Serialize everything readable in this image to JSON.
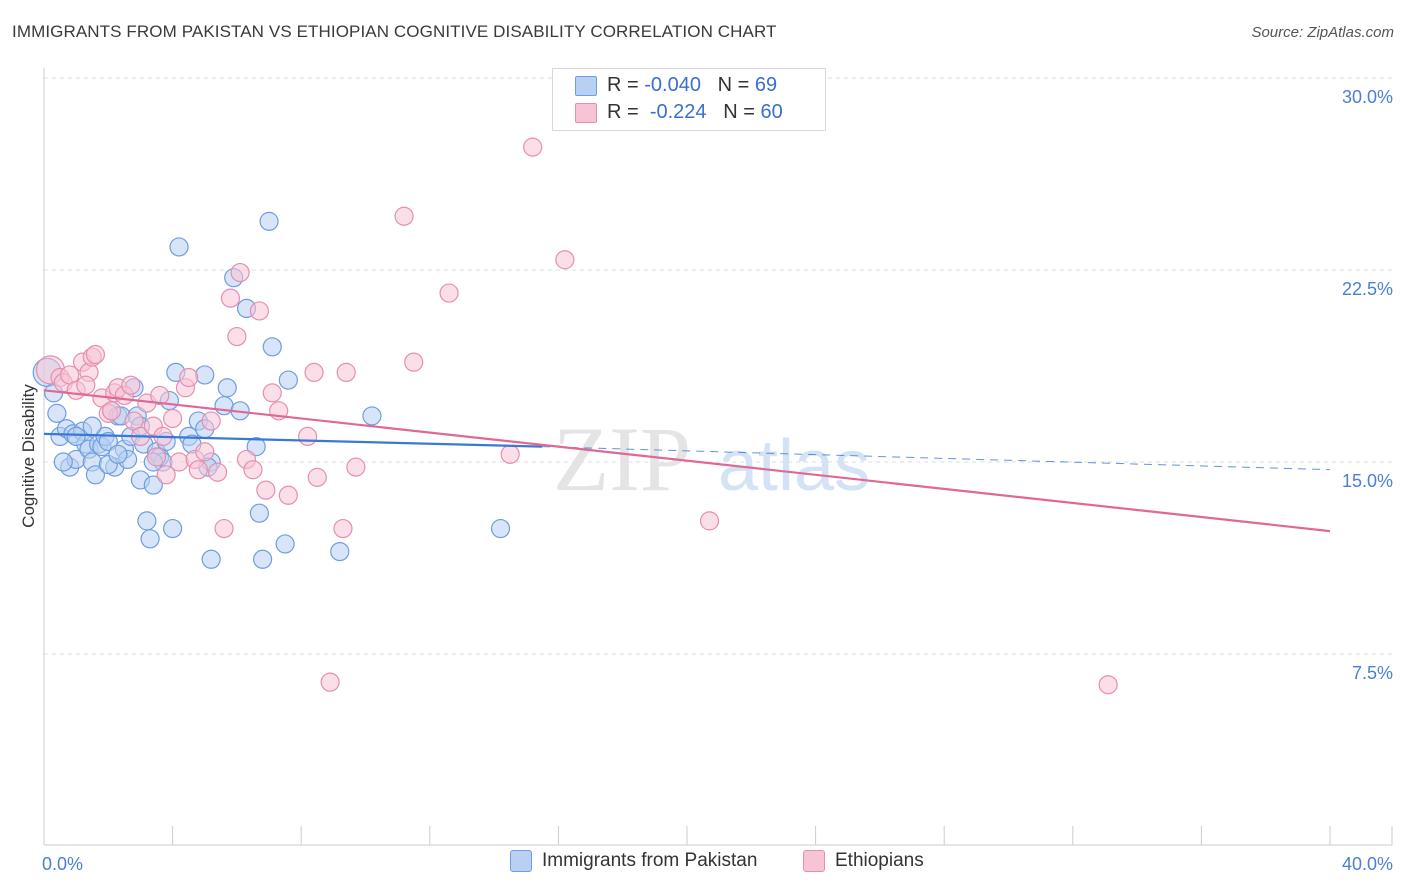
{
  "title": "IMMIGRANTS FROM PAKISTAN VS ETHIOPIAN COGNITIVE DISABILITY CORRELATION CHART",
  "source": "Source: ZipAtlas.com",
  "watermark": {
    "zip": "ZIP",
    "atlas": "atlas"
  },
  "legend": {
    "rows": [
      {
        "r_label": "R = ",
        "r_value": "-0.040",
        "n_label": "N = ",
        "n_value": "69"
      },
      {
        "r_label": "R = ",
        "r_value": "-0.224",
        "n_label": "N = ",
        "n_value": "60"
      }
    ]
  },
  "bottom_legend": [
    "Immigrants from Pakistan",
    "Ethiopians"
  ],
  "colors": {
    "blue_fill": "#b8d0f2",
    "blue_stroke": "#6f9de0",
    "blue_line": "#3a78d4",
    "pink_fill": "#f7c4d6",
    "pink_stroke": "#e58fb0",
    "pink_line": "#e06894",
    "tick_label": "#4a7fd4",
    "grid": "#dddddd"
  },
  "chart_data": {
    "type": "scatter",
    "title": "IMMIGRANTS FROM PAKISTAN VS ETHIOPIAN COGNITIVE DISABILITY CORRELATION CHART",
    "xlabel": "",
    "ylabel": "Cognitive Disability",
    "xlim": [
      0,
      40
    ],
    "ylim": [
      0,
      31
    ],
    "x_tick_labels": [
      "0.0%",
      "40.0%"
    ],
    "y_ticks": [
      7.5,
      15.0,
      22.5,
      30.0
    ],
    "y_tick_labels": [
      "7.5%",
      "15.0%",
      "22.5%",
      "30.0%"
    ],
    "grid": "horizontal dashed",
    "legend_position": "top-center",
    "series": [
      {
        "name": "Immigrants from Pakistan",
        "r": -0.04,
        "n": 69,
        "trend": {
          "x": [
            0,
            15.5
          ],
          "y": [
            16.1,
            15.6
          ],
          "dashed_to": [
            40,
            14.7
          ]
        },
        "points": [
          [
            0.1,
            18.5
          ],
          [
            0.3,
            17.7
          ],
          [
            0.4,
            16.9
          ],
          [
            0.5,
            16.0
          ],
          [
            0.7,
            16.3
          ],
          [
            0.8,
            14.8
          ],
          [
            0.9,
            16.1
          ],
          [
            1.0,
            15.1
          ],
          [
            1.2,
            16.2
          ],
          [
            1.3,
            15.7
          ],
          [
            1.4,
            15.5
          ],
          [
            1.5,
            15.0
          ],
          [
            1.6,
            14.5
          ],
          [
            1.7,
            15.7
          ],
          [
            1.8,
            15.6
          ],
          [
            1.9,
            16.0
          ],
          [
            2.0,
            15.8
          ],
          [
            2.1,
            17.0
          ],
          [
            2.2,
            14.8
          ],
          [
            2.3,
            16.8
          ],
          [
            2.4,
            16.8
          ],
          [
            2.5,
            15.5
          ],
          [
            2.6,
            15.1
          ],
          [
            2.7,
            16.0
          ],
          [
            2.8,
            17.9
          ],
          [
            2.9,
            16.8
          ],
          [
            3.0,
            14.3
          ],
          [
            3.1,
            15.7
          ],
          [
            3.2,
            12.7
          ],
          [
            3.3,
            12.0
          ],
          [
            3.4,
            14.1
          ],
          [
            3.5,
            15.4
          ],
          [
            3.6,
            15.2
          ],
          [
            3.7,
            15.0
          ],
          [
            3.8,
            15.8
          ],
          [
            3.9,
            17.4
          ],
          [
            4.0,
            12.4
          ],
          [
            4.1,
            18.5
          ],
          [
            4.2,
            23.4
          ],
          [
            4.5,
            16.0
          ],
          [
            4.8,
            16.6
          ],
          [
            5.0,
            18.4
          ],
          [
            5.2,
            15.0
          ],
          [
            5.1,
            14.8
          ],
          [
            5.2,
            11.2
          ],
          [
            5.6,
            17.2
          ],
          [
            5.7,
            17.9
          ],
          [
            5.9,
            22.2
          ],
          [
            6.3,
            21.0
          ],
          [
            6.6,
            15.6
          ],
          [
            6.7,
            13.0
          ],
          [
            6.8,
            11.2
          ],
          [
            7.0,
            24.4
          ],
          [
            7.1,
            19.5
          ],
          [
            7.5,
            11.8
          ],
          [
            7.6,
            18.2
          ],
          [
            9.2,
            11.5
          ],
          [
            10.2,
            16.8
          ],
          [
            14.2,
            12.4
          ],
          [
            3.4,
            15.0
          ],
          [
            2.0,
            14.9
          ],
          [
            1.0,
            16.0
          ],
          [
            0.6,
            15.0
          ],
          [
            4.6,
            15.7
          ],
          [
            3.0,
            16.4
          ],
          [
            6.1,
            17.0
          ],
          [
            1.5,
            16.4
          ],
          [
            2.3,
            15.3
          ],
          [
            5.0,
            16.3
          ]
        ]
      },
      {
        "name": "Ethiopians",
        "r": -0.224,
        "n": 60,
        "trend": {
          "x": [
            0,
            40
          ],
          "y": [
            17.8,
            12.3
          ]
        },
        "points": [
          [
            0.2,
            18.6
          ],
          [
            0.5,
            18.3
          ],
          [
            0.6,
            18.1
          ],
          [
            0.8,
            18.4
          ],
          [
            1.0,
            17.8
          ],
          [
            1.2,
            18.9
          ],
          [
            1.4,
            18.5
          ],
          [
            1.5,
            19.1
          ],
          [
            1.6,
            19.2
          ],
          [
            1.8,
            17.5
          ],
          [
            2.0,
            16.9
          ],
          [
            2.2,
            17.7
          ],
          [
            2.3,
            17.9
          ],
          [
            2.5,
            17.6
          ],
          [
            2.7,
            18.0
          ],
          [
            2.8,
            16.6
          ],
          [
            3.0,
            16.0
          ],
          [
            3.2,
            17.3
          ],
          [
            3.4,
            16.4
          ],
          [
            3.5,
            15.2
          ],
          [
            3.7,
            16.0
          ],
          [
            3.8,
            14.5
          ],
          [
            4.0,
            16.7
          ],
          [
            4.2,
            15.0
          ],
          [
            4.4,
            17.9
          ],
          [
            4.5,
            18.3
          ],
          [
            4.7,
            15.1
          ],
          [
            4.8,
            14.7
          ],
          [
            5.0,
            15.4
          ],
          [
            5.2,
            16.6
          ],
          [
            5.4,
            14.6
          ],
          [
            5.6,
            12.4
          ],
          [
            5.8,
            21.4
          ],
          [
            6.0,
            19.9
          ],
          [
            6.1,
            22.4
          ],
          [
            6.3,
            15.1
          ],
          [
            6.5,
            14.7
          ],
          [
            6.7,
            20.9
          ],
          [
            6.9,
            13.9
          ],
          [
            7.1,
            17.7
          ],
          [
            7.3,
            17.0
          ],
          [
            7.6,
            13.7
          ],
          [
            8.2,
            16.0
          ],
          [
            8.4,
            18.5
          ],
          [
            8.5,
            14.4
          ],
          [
            8.9,
            6.4
          ],
          [
            9.3,
            12.4
          ],
          [
            9.4,
            18.5
          ],
          [
            9.7,
            14.8
          ],
          [
            11.2,
            24.6
          ],
          [
            11.5,
            18.9
          ],
          [
            12.6,
            21.6
          ],
          [
            14.5,
            15.3
          ],
          [
            15.2,
            27.3
          ],
          [
            16.2,
            22.9
          ],
          [
            20.7,
            12.7
          ],
          [
            33.1,
            6.3
          ],
          [
            3.6,
            17.6
          ],
          [
            2.1,
            17.0
          ],
          [
            1.3,
            18.0
          ]
        ]
      }
    ]
  }
}
